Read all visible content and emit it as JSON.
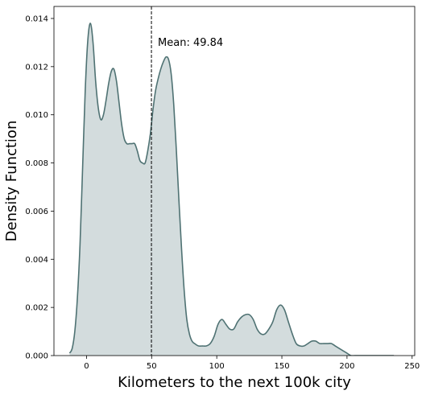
{
  "chart_data": {
    "type": "area",
    "title": "",
    "xlabel": "Kilometers to the next 100k city",
    "ylabel": "Density Function",
    "xlim": [
      -25,
      252
    ],
    "ylim": [
      0,
      0.0145
    ],
    "x_ticks": [
      0,
      50,
      100,
      150,
      200,
      250
    ],
    "y_ticks": [
      0.0,
      0.002,
      0.004,
      0.006,
      0.008,
      0.01,
      0.012,
      0.014
    ],
    "x_tick_labels": [
      "0",
      "50",
      "100",
      "150",
      "200",
      "250"
    ],
    "y_tick_labels": [
      "0.000",
      "0.002",
      "0.004",
      "0.006",
      "0.008",
      "0.010",
      "0.012",
      "0.014"
    ],
    "grid": false,
    "mean": {
      "value": 49.84,
      "label": "Mean: 49.84"
    },
    "colors": {
      "line": "#4f7273",
      "fill": "#d3dcdd",
      "mean_line": "#000000"
    },
    "series": [
      {
        "x": [
          -13,
          -11,
          -9,
          -7,
          -5,
          -3,
          -1,
          1,
          3,
          5,
          7,
          9,
          11,
          13,
          15,
          17,
          19,
          21,
          23,
          25,
          27,
          29,
          31,
          33,
          35,
          37,
          39,
          41,
          43,
          45,
          47,
          49,
          51,
          53,
          55,
          57,
          59,
          61,
          63,
          65,
          67,
          69,
          71,
          73,
          75,
          77,
          79,
          81,
          83,
          86,
          89,
          92,
          95,
          98,
          101,
          104,
          107,
          110,
          113,
          116,
          119,
          122,
          125,
          128,
          131,
          134,
          137,
          140,
          143,
          146,
          149,
          152,
          155,
          158,
          161,
          164,
          167,
          170,
          173,
          176,
          179,
          182,
          185,
          188,
          191,
          194,
          197,
          200,
          203,
          206,
          209,
          212,
          215,
          218,
          221,
          224,
          227,
          230,
          233,
          236
        ],
        "y": [
          0.0001,
          0.0003,
          0.001,
          0.0024,
          0.0046,
          0.0078,
          0.011,
          0.0131,
          0.0138,
          0.013,
          0.0114,
          0.0103,
          0.0098,
          0.01,
          0.0106,
          0.0113,
          0.0118,
          0.0119,
          0.0114,
          0.0105,
          0.0096,
          0.009,
          0.0088,
          0.0088,
          0.0088,
          0.0088,
          0.0085,
          0.0081,
          0.008,
          0.008,
          0.0085,
          0.0092,
          0.0102,
          0.011,
          0.0115,
          0.0119,
          0.0122,
          0.0124,
          0.0123,
          0.0117,
          0.0104,
          0.0085,
          0.0064,
          0.0044,
          0.0027,
          0.0015,
          0.0009,
          0.0006,
          0.0005,
          0.0004,
          0.0004,
          0.0004,
          0.0005,
          0.0008,
          0.0013,
          0.0015,
          0.0013,
          0.0011,
          0.0011,
          0.0014,
          0.0016,
          0.0017,
          0.0017,
          0.0015,
          0.0011,
          0.0009,
          0.0009,
          0.0011,
          0.0014,
          0.0019,
          0.0021,
          0.0019,
          0.0014,
          0.0009,
          0.0005,
          0.0004,
          0.0004,
          0.0005,
          0.0006,
          0.0006,
          0.0005,
          0.0005,
          0.0005,
          0.0005,
          0.0004,
          0.0003,
          0.0002,
          0.0001,
          0.0,
          0.0,
          0.0,
          0.0,
          0.0,
          0.0,
          0.0,
          0.0,
          0.0,
          0.0,
          0.0,
          0.0
        ]
      }
    ]
  }
}
